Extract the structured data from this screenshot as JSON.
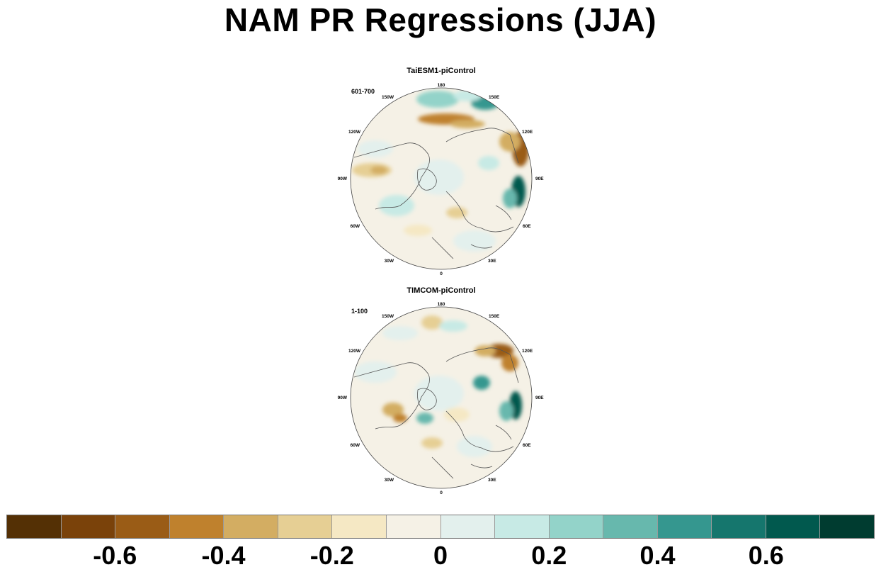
{
  "title": "NAM PR Regressions (JJA)",
  "panels": [
    {
      "title": "TaiESM1-piControl",
      "period": "601-700"
    },
    {
      "title": "TIMCOM-piControl",
      "period": "1-100"
    }
  ],
  "longitude_labels": [
    "180",
    "150E",
    "120E",
    "90E",
    "60E",
    "30E",
    "0",
    "30W",
    "60W",
    "90W",
    "120W",
    "150W"
  ],
  "colorbar": {
    "colors": [
      "#543005",
      "#7a420a",
      "#9a5c16",
      "#bf812d",
      "#d3ad62",
      "#e6cf94",
      "#f5e8c4",
      "#f5f1e6",
      "#e3f0ed",
      "#c7eae5",
      "#93d3c9",
      "#67b8ad",
      "#35978f",
      "#15766d",
      "#01594e",
      "#003c30"
    ],
    "labels": [
      "-0.6",
      "-0.4",
      "-0.2",
      "0",
      "0.2",
      "0.4",
      "0.6"
    ],
    "min": -0.8,
    "max": 0.8
  }
}
